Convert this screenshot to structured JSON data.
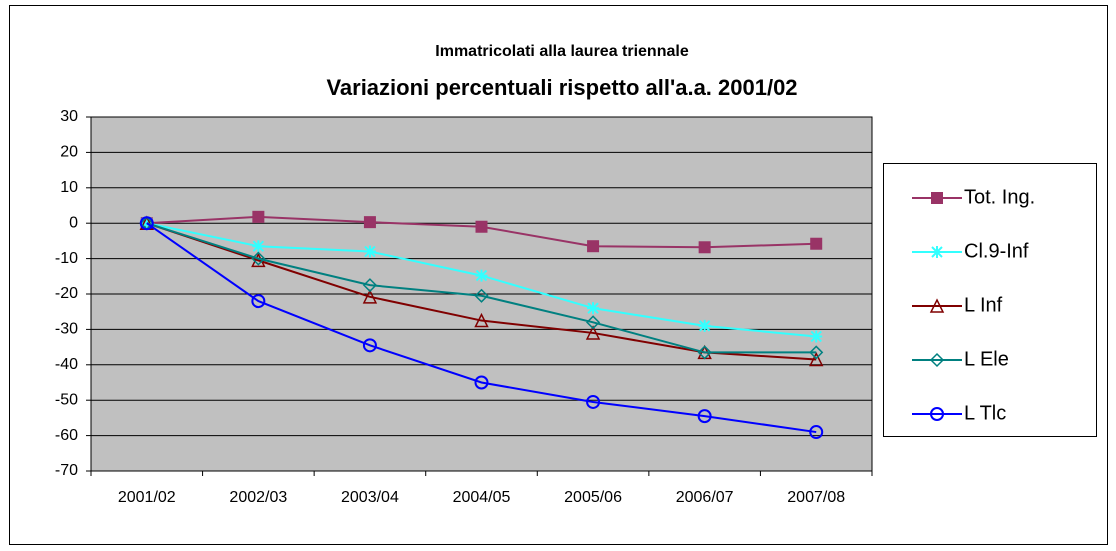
{
  "chart_data": {
    "type": "line",
    "title": "Immatricolati alla laurea triennale",
    "subtitle": "Variazioni percentuali rispetto all'a.a. 2001/02",
    "categories": [
      "2001/02",
      "2002/03",
      "2003/04",
      "2004/05",
      "2005/06",
      "2006/07",
      "2007/08"
    ],
    "series": [
      {
        "name": "Tot. Ing.",
        "color": "#993366",
        "marker": "square",
        "values": [
          0,
          1.8,
          0.3,
          -1,
          -6.5,
          -6.8,
          -5.8
        ]
      },
      {
        "name": "Cl.9-Inf",
        "color": "#33ffff",
        "marker": "asterisk",
        "values": [
          0,
          -6.5,
          -8,
          -14.8,
          -24,
          -29,
          -32
        ]
      },
      {
        "name": "L  Inf",
        "color": "#800000",
        "marker": "triangle",
        "values": [
          0,
          -10.5,
          -20.8,
          -27.5,
          -31,
          -36.5,
          -38.5
        ]
      },
      {
        "name": "L  Ele",
        "color": "#008080",
        "marker": "diamond",
        "values": [
          0,
          -10,
          -17.5,
          -20.5,
          -28,
          -36.5,
          -36.5
        ]
      },
      {
        "name": "L  Tlc",
        "color": "#0000ff",
        "marker": "circle",
        "values": [
          0,
          -22,
          -34.5,
          -45,
          -50.5,
          -54.5,
          -59
        ]
      }
    ],
    "ylim": [
      -70,
      30
    ],
    "yticks": [
      -70,
      -60,
      -50,
      -40,
      -30,
      -20,
      -10,
      0,
      10,
      20,
      30
    ],
    "grid": true,
    "legend": "right"
  }
}
